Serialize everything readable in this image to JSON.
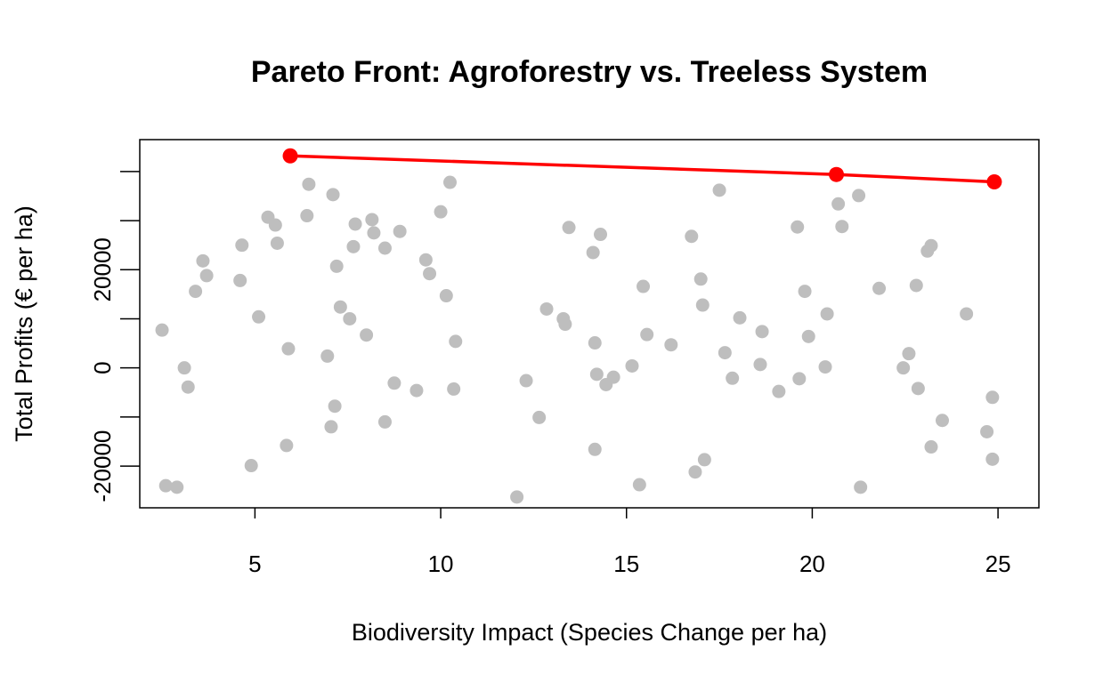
{
  "chart_data": {
    "type": "scatter",
    "title": "Pareto Front: Agroforestry vs. Treeless System",
    "xlabel": "Biodiversity Impact (Species Change per ha)",
    "ylabel": "Total Profits (€ per ha)",
    "xlim": [
      1.9,
      26.1
    ],
    "ylim": [
      -28500,
      46500
    ],
    "x_ticks": [
      5,
      10,
      15,
      20,
      25
    ],
    "x_tick_labels": [
      "5",
      "10",
      "15",
      "20",
      "25"
    ],
    "y_ticks": [
      -20000,
      0,
      20000
    ],
    "y_tick_labels": [
      "-20000",
      "0",
      "20000"
    ],
    "y_minor_ticks": [
      -10000,
      10000,
      30000,
      40000
    ],
    "grid": false,
    "legend": "none",
    "colors": {
      "points": "#bebebe",
      "pareto": "#ff0000"
    },
    "series": [
      {
        "points": [
          [
            2.5,
            7.7
          ],
          [
            2.6,
            -24.0
          ],
          [
            2.9,
            -24.3
          ],
          [
            3.1,
            0.0
          ],
          [
            3.2,
            -3.9
          ],
          [
            3.4,
            15.6
          ],
          [
            3.6,
            21.8
          ],
          [
            3.7,
            18.8
          ],
          [
            4.6,
            17.8
          ],
          [
            4.65,
            25.0
          ],
          [
            4.9,
            -19.9
          ],
          [
            5.1,
            10.4
          ],
          [
            5.35,
            30.7
          ],
          [
            5.55,
            29.1
          ],
          [
            5.6,
            25.4
          ],
          [
            5.85,
            -15.8
          ],
          [
            5.9,
            3.9
          ],
          [
            6.4,
            31.0
          ],
          [
            6.45,
            37.4
          ],
          [
            6.95,
            2.4
          ],
          [
            7.05,
            -12.0
          ],
          [
            7.1,
            35.3
          ],
          [
            7.15,
            -7.8
          ],
          [
            7.2,
            20.7
          ],
          [
            7.3,
            12.4
          ],
          [
            7.55,
            10.0
          ],
          [
            7.65,
            24.7
          ],
          [
            7.7,
            29.3
          ],
          [
            8.0,
            6.7
          ],
          [
            8.15,
            30.2
          ],
          [
            8.2,
            27.5
          ],
          [
            8.5,
            24.4
          ],
          [
            8.5,
            -11.0
          ],
          [
            8.75,
            -3.1
          ],
          [
            8.9,
            27.8
          ],
          [
            9.35,
            -4.6
          ],
          [
            9.6,
            22.0
          ],
          [
            9.7,
            19.2
          ],
          [
            10.0,
            31.8
          ],
          [
            10.15,
            14.7
          ],
          [
            10.25,
            37.8
          ],
          [
            10.35,
            -4.3
          ],
          [
            10.4,
            5.4
          ],
          [
            12.05,
            -26.3
          ],
          [
            12.3,
            -2.6
          ],
          [
            12.65,
            -10.1
          ],
          [
            12.85,
            12.0
          ],
          [
            13.3,
            10.0
          ],
          [
            13.35,
            8.9
          ],
          [
            13.45,
            28.6
          ],
          [
            14.1,
            23.5
          ],
          [
            14.15,
            5.1
          ],
          [
            14.15,
            -16.6
          ],
          [
            14.2,
            -1.3
          ],
          [
            14.3,
            27.2
          ],
          [
            14.45,
            -3.4
          ],
          [
            14.65,
            -1.9
          ],
          [
            15.15,
            0.4
          ],
          [
            15.35,
            -23.8
          ],
          [
            15.45,
            16.6
          ],
          [
            15.55,
            6.8
          ],
          [
            16.2,
            4.7
          ],
          [
            16.75,
            26.8
          ],
          [
            16.85,
            -21.2
          ],
          [
            17.0,
            18.1
          ],
          [
            17.05,
            12.8
          ],
          [
            17.1,
            -18.7
          ],
          [
            17.5,
            36.2
          ],
          [
            17.65,
            3.1
          ],
          [
            17.85,
            -2.1
          ],
          [
            18.05,
            10.2
          ],
          [
            18.6,
            0.7
          ],
          [
            18.65,
            7.4
          ],
          [
            19.1,
            -4.8
          ],
          [
            19.6,
            28.7
          ],
          [
            19.65,
            -2.2
          ],
          [
            19.8,
            15.6
          ],
          [
            19.9,
            6.4
          ],
          [
            20.35,
            0.2
          ],
          [
            20.4,
            11.0
          ],
          [
            20.7,
            33.4
          ],
          [
            20.8,
            28.8
          ],
          [
            21.25,
            35.1
          ],
          [
            21.3,
            -24.3
          ],
          [
            21.8,
            16.2
          ],
          [
            22.45,
            0.0
          ],
          [
            22.6,
            2.9
          ],
          [
            22.8,
            16.8
          ],
          [
            22.85,
            -4.2
          ],
          [
            23.1,
            23.8
          ],
          [
            23.2,
            24.9
          ],
          [
            23.2,
            -16.1
          ],
          [
            23.5,
            -10.7
          ],
          [
            24.15,
            11.0
          ],
          [
            24.7,
            -13.0
          ],
          [
            24.85,
            -6.0
          ],
          [
            24.85,
            -18.6
          ]
        ]
      },
      {
        "points": [
          [
            5.95,
            43.2
          ],
          [
            20.65,
            39.4
          ],
          [
            24.9,
            37.9
          ]
        ]
      }
    ]
  }
}
